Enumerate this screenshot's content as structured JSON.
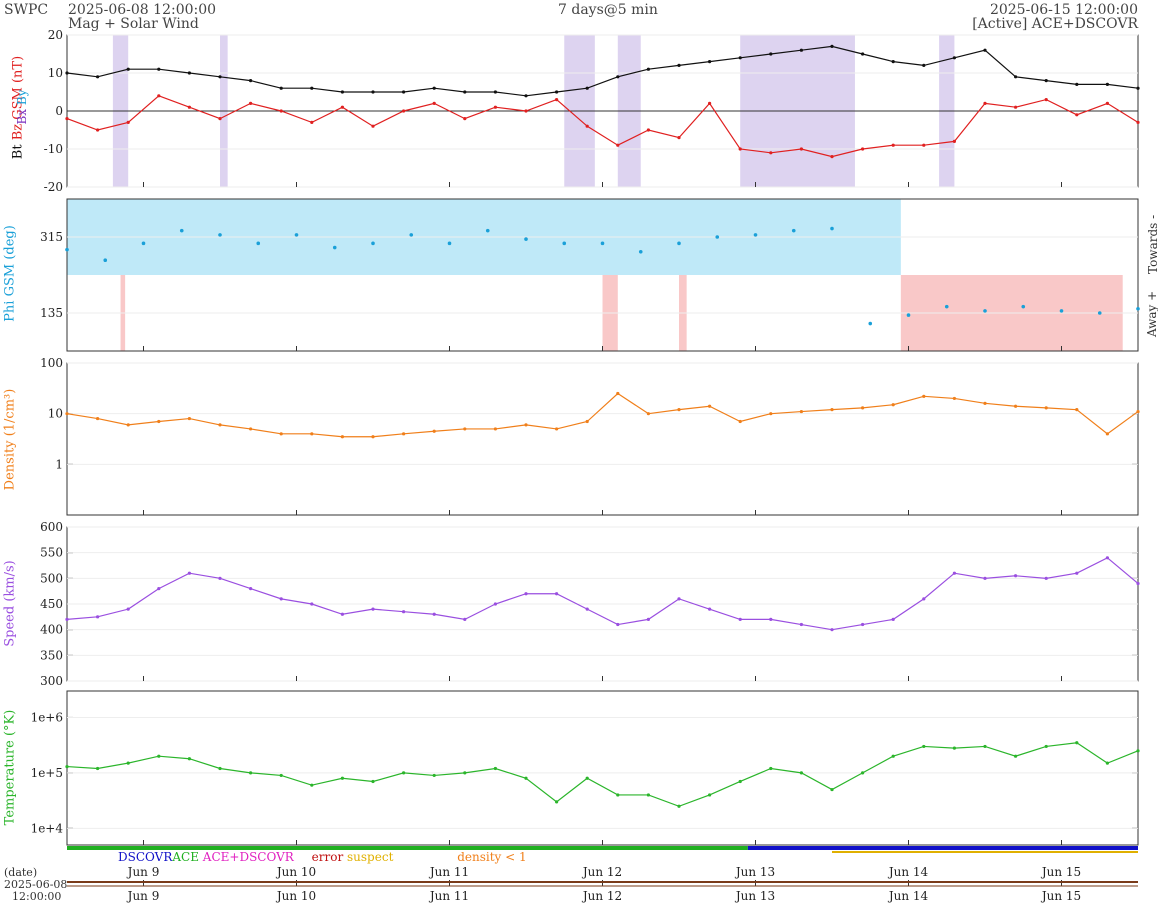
{
  "header": {
    "org": "SWPC",
    "start": "2025-06-08 12:00:00",
    "subtitle": "Mag + Solar Wind",
    "span": "7 days@5 min",
    "end": "2025-06-15 12:00:00",
    "source": "[Active] ACE+DSCOVR"
  },
  "colors": {
    "bt": "#111111",
    "bz": "#e02020",
    "bx": "#7b2fbe",
    "by": "#1aa0d8",
    "phi": "#1aa0d8",
    "phi_towards": "#bfe9f8",
    "phi_away": "#f9c8c8",
    "density": "#f07f1a",
    "speed": "#9a4fe0",
    "temperature": "#2bb52b",
    "south_band": "#ddd3f0"
  },
  "chart_data": [
    {
      "type": "line",
      "panel": "mag",
      "ylabel": "Bt  Bz GSM (nT)",
      "ylabel_extra": [
        "Bx",
        "By"
      ],
      "ylim": [
        -20,
        20
      ],
      "yticks": [
        -20,
        -10,
        0,
        10,
        20
      ],
      "x_unit": "day offset from 2025-06-08 12:00",
      "series": [
        {
          "name": "Bt",
          "x": [
            0,
            0.2,
            0.4,
            0.6,
            0.8,
            1.0,
            1.2,
            1.4,
            1.6,
            1.8,
            2.0,
            2.2,
            2.4,
            2.6,
            2.8,
            3.0,
            3.2,
            3.4,
            3.6,
            3.8,
            4.0,
            4.2,
            4.4,
            4.6,
            4.8,
            5.0,
            5.2,
            5.4,
            5.6,
            5.8,
            6.0,
            6.2,
            6.4,
            6.6,
            6.8,
            7.0
          ],
          "values": [
            10,
            9,
            11,
            11,
            10,
            9,
            8,
            6,
            6,
            5,
            5,
            5,
            6,
            5,
            5,
            4,
            5,
            6,
            9,
            11,
            12,
            13,
            14,
            15,
            16,
            17,
            15,
            13,
            12,
            14,
            16,
            9,
            8,
            7,
            7,
            6
          ]
        },
        {
          "name": "Bz",
          "x": [
            0,
            0.2,
            0.4,
            0.6,
            0.8,
            1.0,
            1.2,
            1.4,
            1.6,
            1.8,
            2.0,
            2.2,
            2.4,
            2.6,
            2.8,
            3.0,
            3.2,
            3.4,
            3.6,
            3.8,
            4.0,
            4.2,
            4.4,
            4.6,
            4.8,
            5.0,
            5.2,
            5.4,
            5.6,
            5.8,
            6.0,
            6.2,
            6.4,
            6.6,
            6.8,
            7.0
          ],
          "values": [
            -2,
            -5,
            -3,
            4,
            1,
            -2,
            2,
            0,
            -3,
            1,
            -4,
            0,
            2,
            -2,
            1,
            0,
            3,
            -4,
            -9,
            -5,
            -7,
            2,
            -10,
            -11,
            -10,
            -12,
            -10,
            -9,
            -9,
            -8,
            2,
            1,
            3,
            -1,
            2,
            -3
          ]
        }
      ],
      "south_bz_spans": [
        [
          0.3,
          0.4
        ],
        [
          1.0,
          1.05
        ],
        [
          3.25,
          3.45
        ],
        [
          3.6,
          3.75
        ],
        [
          4.4,
          5.15
        ],
        [
          5.7,
          5.8
        ]
      ]
    },
    {
      "type": "scatter",
      "panel": "phi",
      "ylabel": "Phi GSM (deg)",
      "right_labels": [
        "Towards -",
        "Away +"
      ],
      "ylim": [
        45,
        405
      ],
      "yticks": [
        135,
        315
      ],
      "x": [
        0,
        0.25,
        0.5,
        0.75,
        1.0,
        1.25,
        1.5,
        1.75,
        2.0,
        2.25,
        2.5,
        2.75,
        3.0,
        3.25,
        3.5,
        3.75,
        4.0,
        4.25,
        4.5,
        4.75,
        5.0,
        5.25,
        5.5,
        5.75,
        6.0,
        6.25,
        6.5,
        6.75,
        7.0
      ],
      "values": [
        285,
        260,
        300,
        330,
        320,
        300,
        320,
        290,
        300,
        320,
        300,
        330,
        310,
        300,
        300,
        280,
        300,
        315,
        320,
        330,
        335,
        110,
        130,
        150,
        140,
        150,
        140,
        135,
        145
      ],
      "away_spans": [
        [
          5.45,
          6.9
        ],
        [
          0.35,
          0.38
        ],
        [
          4.0,
          4.05
        ],
        [
          3.5,
          3.6
        ]
      ]
    },
    {
      "type": "line",
      "panel": "density",
      "ylabel": "Density (1/cm³)",
      "scale": "log",
      "ylim": [
        0.1,
        100
      ],
      "yticks": [
        1,
        10,
        100
      ],
      "x": [
        0,
        0.2,
        0.4,
        0.6,
        0.8,
        1.0,
        1.2,
        1.4,
        1.6,
        1.8,
        2.0,
        2.2,
        2.4,
        2.6,
        2.8,
        3.0,
        3.2,
        3.4,
        3.6,
        3.8,
        4.0,
        4.2,
        4.4,
        4.6,
        4.8,
        5.0,
        5.2,
        5.4,
        5.6,
        5.8,
        6.0,
        6.2,
        6.4,
        6.6,
        6.8,
        7.0
      ],
      "values": [
        10,
        8,
        6,
        7,
        8,
        6,
        5,
        4,
        4,
        3.5,
        3.5,
        4,
        4.5,
        5,
        5,
        6,
        5,
        7,
        25,
        10,
        12,
        14,
        7,
        10,
        11,
        12,
        13,
        15,
        22,
        20,
        16,
        14,
        13,
        12,
        4,
        11
      ]
    },
    {
      "type": "line",
      "panel": "speed",
      "ylabel": "Speed (km/s)",
      "ylim": [
        300,
        600
      ],
      "yticks": [
        300,
        350,
        400,
        450,
        500,
        550,
        600
      ],
      "x": [
        0,
        0.2,
        0.4,
        0.6,
        0.8,
        1.0,
        1.2,
        1.4,
        1.6,
        1.8,
        2.0,
        2.2,
        2.4,
        2.6,
        2.8,
        3.0,
        3.2,
        3.4,
        3.6,
        3.8,
        4.0,
        4.2,
        4.4,
        4.6,
        4.8,
        5.0,
        5.2,
        5.4,
        5.6,
        5.8,
        6.0,
        6.2,
        6.4,
        6.6,
        6.8,
        7.0
      ],
      "values": [
        420,
        425,
        440,
        480,
        510,
        500,
        480,
        460,
        450,
        430,
        440,
        435,
        430,
        420,
        450,
        470,
        470,
        440,
        410,
        420,
        460,
        440,
        420,
        420,
        410,
        400,
        410,
        420,
        460,
        510,
        500,
        505,
        500,
        510,
        540,
        490
      ]
    },
    {
      "type": "line",
      "panel": "temperature",
      "ylabel": "Temperature (°K)",
      "scale": "log",
      "ylim": [
        5000,
        3000000
      ],
      "yticks": [
        10000,
        100000,
        1000000
      ],
      "ytick_labels": [
        "1e+4",
        "1e+5",
        "1e+6"
      ],
      "x": [
        0,
        0.2,
        0.4,
        0.6,
        0.8,
        1.0,
        1.2,
        1.4,
        1.6,
        1.8,
        2.0,
        2.2,
        2.4,
        2.6,
        2.8,
        3.0,
        3.2,
        3.4,
        3.6,
        3.8,
        4.0,
        4.2,
        4.4,
        4.6,
        4.8,
        5.0,
        5.2,
        5.4,
        5.6,
        5.8,
        6.0,
        6.2,
        6.4,
        6.6,
        6.8,
        7.0
      ],
      "values": [
        130000,
        120000,
        150000,
        200000,
        180000,
        120000,
        100000,
        90000,
        60000,
        80000,
        70000,
        100000,
        90000,
        100000,
        120000,
        80000,
        30000,
        80000,
        40000,
        40000,
        25000,
        40000,
        70000,
        120000,
        100000,
        50000,
        100000,
        200000,
        300000,
        280000,
        300000,
        200000,
        300000,
        350000,
        150000,
        250000
      ]
    }
  ],
  "xaxis": {
    "labels": [
      "Jun 9",
      "Jun 10",
      "Jun 11",
      "Jun 12",
      "Jun 13",
      "Jun 14",
      "Jun 15"
    ],
    "date_label": "(date)",
    "start_date": "2025-06-08",
    "start_time": "12:00:00"
  },
  "legend": {
    "dscovr": "DSCOVR",
    "ace": "ACE",
    "combo": "ACE+DSCOVR",
    "error": "error",
    "suspect": "suspect",
    "density": "density < 1"
  }
}
